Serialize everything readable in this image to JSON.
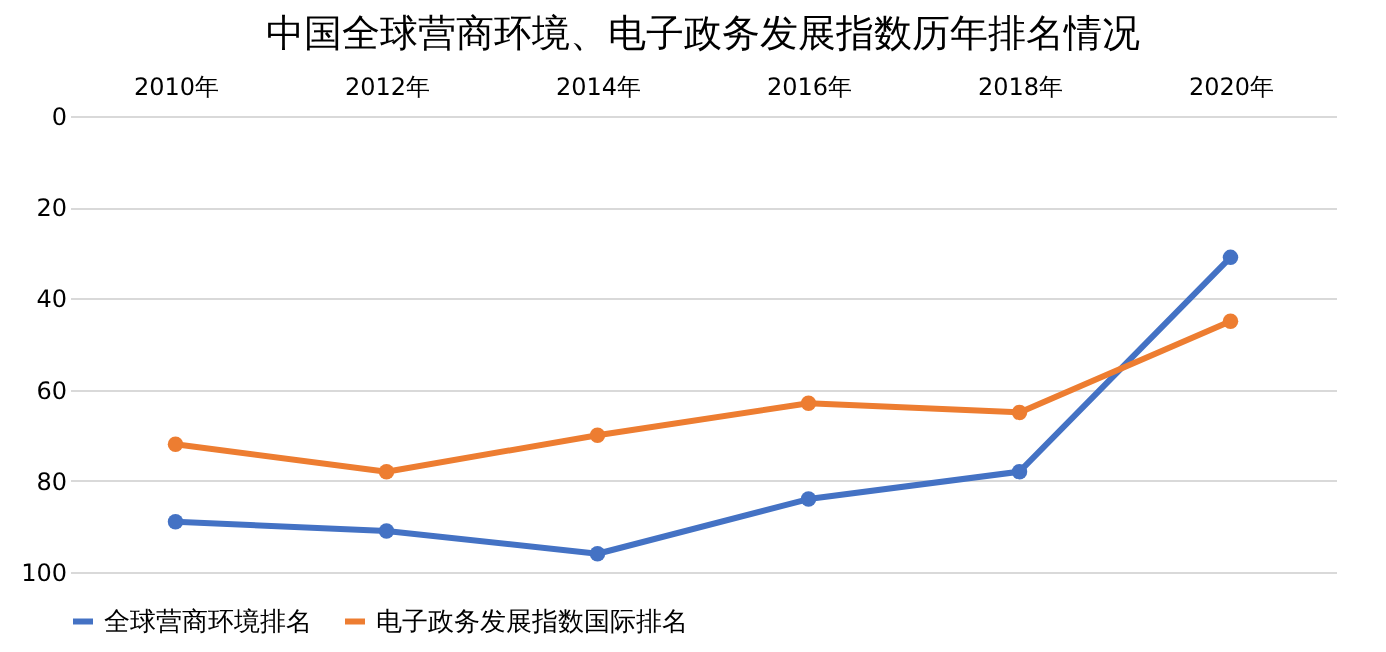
{
  "chart_data": {
    "type": "line",
    "title": "中国全球营商环境、电子政务发展指数历年排名情况",
    "categories": [
      "2010年",
      "2012年",
      "2014年",
      "2016年",
      "2018年",
      "2020年"
    ],
    "series": [
      {
        "name": "全球营商环境排名",
        "color": "#4472c4",
        "values": [
          89,
          91,
          96,
          84,
          78,
          31
        ]
      },
      {
        "name": "电子政务发展指数国际排名",
        "color": "#ed7d31",
        "values": [
          72,
          78,
          70,
          63,
          65,
          45
        ]
      }
    ],
    "ylim": [
      100,
      0
    ],
    "yticks": [
      0,
      20,
      40,
      60,
      80,
      100
    ],
    "grid": "y",
    "legend": "bottom",
    "marker": "circle",
    "line_style": "solid"
  }
}
